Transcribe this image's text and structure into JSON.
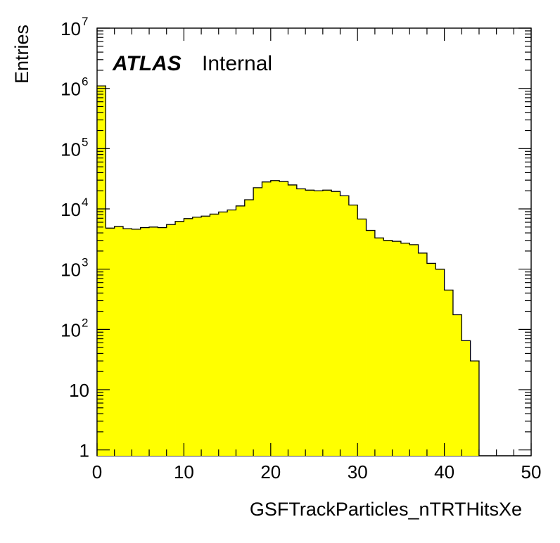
{
  "chart_data": {
    "type": "bar",
    "style": "filled-step-histogram",
    "fill_color": "#ffff00",
    "line_color": "#000000",
    "xlabel": "GSFTrackParticles_nTRTHitsXe",
    "ylabel": "Entries",
    "label_bold": "ATLAS",
    "label_text": "Internal",
    "xlim": [
      0,
      50
    ],
    "ylim": [
      0.8,
      10000000
    ],
    "yscale": "log",
    "bin_width": 1,
    "x_ticks": [
      "0",
      "10",
      "20",
      "30",
      "40",
      "50"
    ],
    "y_ticks": [
      {
        "base": "1",
        "exp": ""
      },
      {
        "base": "10",
        "exp": ""
      },
      {
        "base": "10",
        "exp": "2"
      },
      {
        "base": "10",
        "exp": "3"
      },
      {
        "base": "10",
        "exp": "4"
      },
      {
        "base": "10",
        "exp": "5"
      },
      {
        "base": "10",
        "exp": "6"
      },
      {
        "base": "10",
        "exp": "7"
      }
    ],
    "x": [
      0,
      1,
      2,
      3,
      4,
      5,
      6,
      7,
      8,
      9,
      10,
      11,
      12,
      13,
      14,
      15,
      16,
      17,
      18,
      19,
      20,
      21,
      22,
      23,
      24,
      25,
      26,
      27,
      28,
      29,
      30,
      31,
      32,
      33,
      34,
      35,
      36,
      37,
      38,
      39,
      40,
      41,
      42,
      43,
      44,
      45,
      46,
      47,
      48,
      49
    ],
    "values": [
      1100000,
      4800,
      5100,
      4700,
      4600,
      4900,
      5000,
      4900,
      5500,
      6200,
      6900,
      7300,
      7600,
      8200,
      8900,
      9600,
      11200,
      14200,
      22500,
      28000,
      29500,
      28500,
      25000,
      21500,
      20500,
      20000,
      20500,
      19500,
      16500,
      11600,
      6800,
      4400,
      3300,
      3000,
      2900,
      2700,
      2550,
      1850,
      1250,
      1000,
      450,
      175,
      65,
      30,
      0,
      0,
      0,
      0,
      0,
      0
    ]
  }
}
